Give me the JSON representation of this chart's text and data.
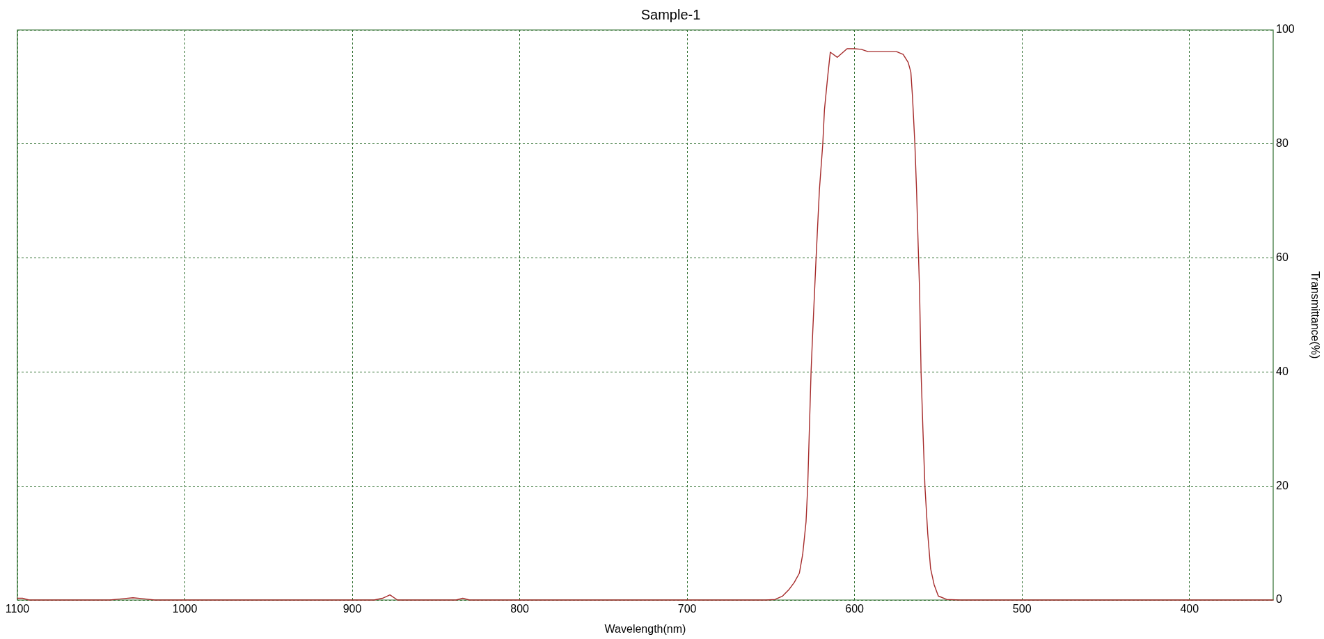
{
  "chart_data": {
    "type": "line",
    "title": "Sample-1",
    "xlabel": "Wavelength(nm)",
    "ylabel": "Transmittance(%)",
    "x": [
      1100,
      1097,
      1093,
      1045,
      1038,
      1031,
      1024,
      1018,
      887,
      882,
      877.5,
      873,
      838,
      834,
      830,
      653,
      647.5,
      643,
      639,
      636,
      633,
      631,
      629,
      628,
      627,
      626,
      625,
      623,
      621,
      619,
      618,
      616,
      614.5,
      610.3,
      604.5,
      600,
      596,
      592,
      585,
      575,
      571,
      568,
      566.4,
      565.4,
      564,
      563,
      562,
      561.2,
      560.3,
      559.2,
      558,
      556.3,
      554.6,
      552.5,
      550,
      545,
      537,
      350
    ],
    "values": [
      0.3,
      0.3,
      0,
      0,
      0.2,
      0.4,
      0.2,
      0,
      0,
      0.3,
      0.9,
      0,
      0,
      0.3,
      0,
      0,
      0.1,
      0.7,
      1.9,
      3.1,
      4.7,
      8,
      13.7,
      19.9,
      30,
      40,
      47,
      60,
      72,
      80,
      86,
      92,
      96.1,
      95.2,
      96.7,
      96.7,
      96.6,
      96.2,
      96.2,
      96.2,
      95.7,
      94.3,
      92.6,
      88.2,
      80,
      72,
      62,
      54.4,
      40,
      30,
      20,
      11.6,
      5.5,
      2.7,
      0.7,
      0.1,
      0,
      0
    ],
    "color": "#a52a2a",
    "marker": "none",
    "line_style": "solid",
    "xlim": [
      1100,
      350
    ],
    "xticks": [
      1100,
      1000,
      900,
      800,
      700,
      600,
      500,
      400
    ],
    "ylim": [
      0,
      100
    ],
    "yticks": [
      0,
      20,
      40,
      60,
      80,
      100
    ],
    "grid": true
  }
}
